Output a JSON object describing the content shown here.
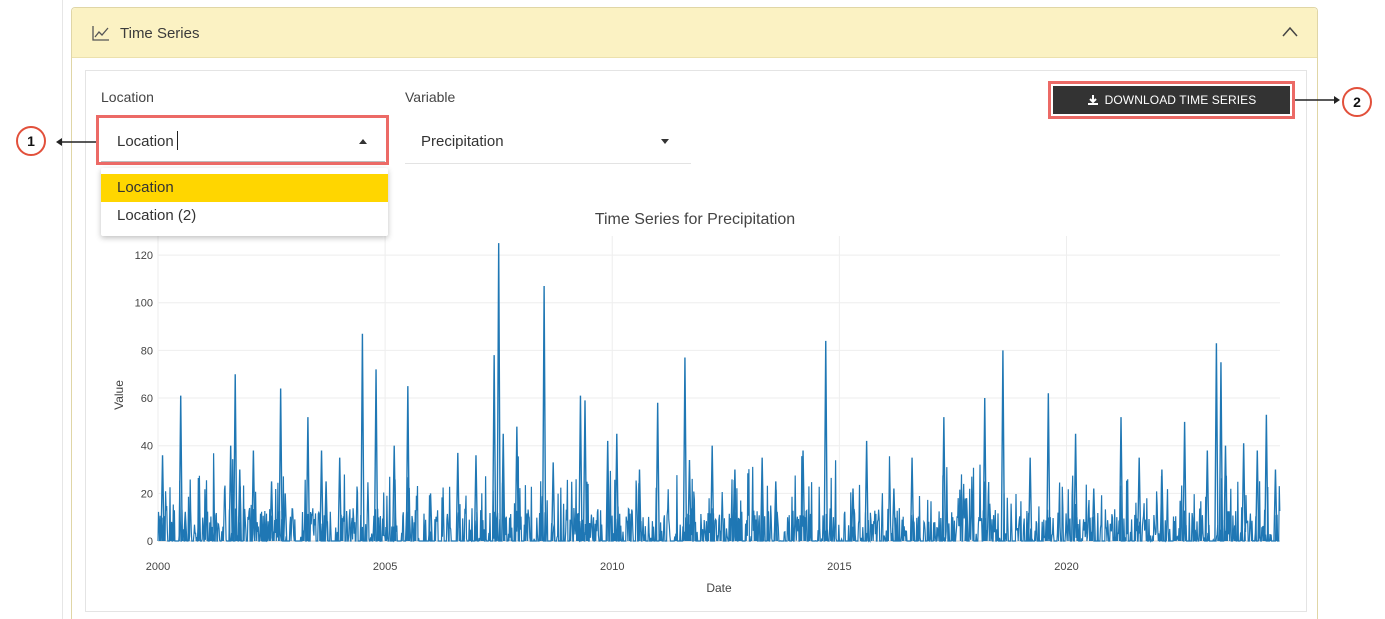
{
  "panel": {
    "title": "Time Series"
  },
  "controls": {
    "location_label": "Location",
    "location_value": "Location",
    "variable_label": "Variable",
    "variable_value": "Precipitation",
    "location_options": [
      "Location",
      "Location (2)"
    ],
    "selected_option_index": 0
  },
  "download_button": {
    "label": "DOWNLOAD TIME SERIES"
  },
  "callouts": {
    "c1": "1",
    "c2": "2"
  },
  "colors": {
    "accent_yellow": "#ffd600",
    "header_bg": "#fbf2c3",
    "series": "#1f77b4",
    "highlight": "#ec6a66"
  },
  "chart_data": {
    "type": "line",
    "title": "Time Series for Precipitation",
    "xlabel": "Date",
    "ylabel": "Value",
    "xlim": [
      2000,
      2024.7
    ],
    "ylim": [
      0,
      128
    ],
    "x_ticks": [
      2000,
      2005,
      2010,
      2015,
      2020
    ],
    "y_ticks": [
      0,
      20,
      40,
      60,
      80,
      100,
      120
    ],
    "grid": true,
    "series": [
      {
        "name": "",
        "x": [
          2000.1,
          2000.3,
          2000.5,
          2000.6,
          2000.9,
          2001.2,
          2001.6,
          2001.7,
          2001.8,
          2002.1,
          2002.5,
          2002.7,
          2002.8,
          2003.3,
          2003.6,
          2003.7,
          2004.0,
          2004.5,
          2004.8,
          2005.2,
          2005.5,
          2006.0,
          2006.6,
          2007.0,
          2007.4,
          2007.5,
          2007.6,
          2007.9,
          2008.5,
          2008.7,
          2009.3,
          2009.4,
          2009.9,
          2010.1,
          2010.6,
          2011.0,
          2011.6,
          2011.7,
          2012.2,
          2012.7,
          2013.3,
          2013.6,
          2014.2,
          2014.7,
          2015.3,
          2015.6,
          2016.2,
          2016.6,
          2017.3,
          2017.8,
          2018.2,
          2018.6,
          2019.2,
          2019.6,
          2020.2,
          2020.6,
          2021.2,
          2021.6,
          2022.1,
          2022.6,
          2023.1,
          2023.3,
          2023.4,
          2023.5,
          2023.9,
          2024.2,
          2024.4,
          2024.6
        ],
        "peaks": [
          36,
          8,
          61,
          12,
          10,
          5,
          40,
          70,
          30,
          38,
          25,
          64,
          20,
          52,
          38,
          25,
          35,
          87,
          72,
          40,
          65,
          20,
          37,
          36,
          78,
          125,
          45,
          48,
          107,
          33,
          61,
          59,
          42,
          45,
          30,
          58,
          77,
          34,
          40,
          30,
          35,
          25,
          38,
          84,
          22,
          42,
          22,
          35,
          52,
          18,
          60,
          80,
          35,
          62,
          45,
          22,
          52,
          35,
          30,
          50,
          38,
          83,
          75,
          40,
          41,
          38,
          53,
          30
        ]
      }
    ]
  }
}
